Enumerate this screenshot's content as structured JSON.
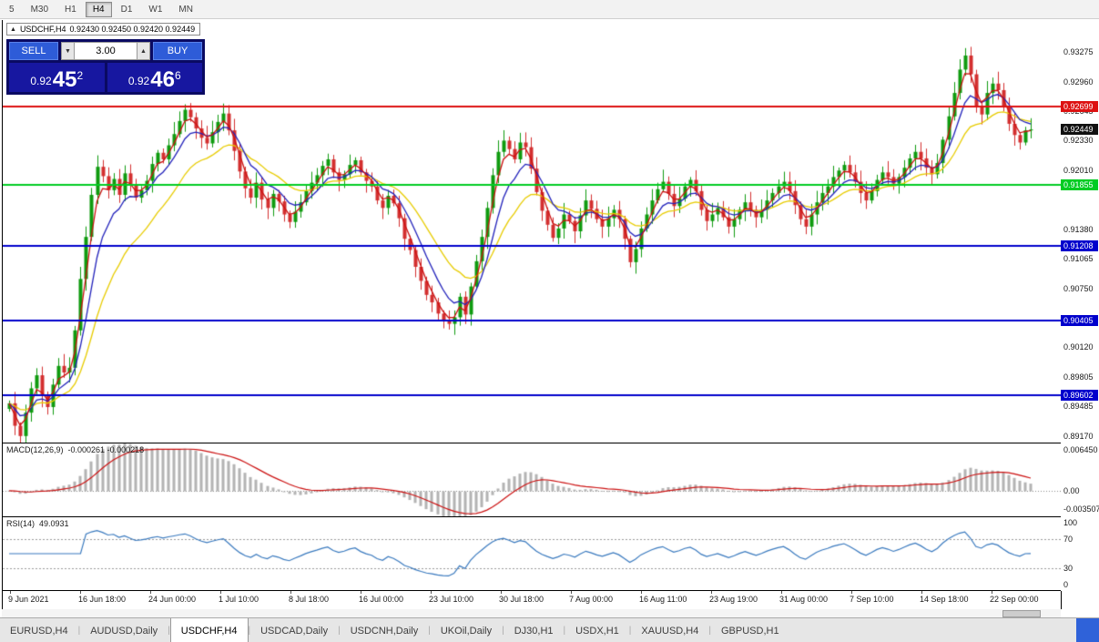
{
  "toolbar": {
    "timeframes": [
      {
        "label": "5",
        "active": false
      },
      {
        "label": "M30",
        "active": false
      },
      {
        "label": "H1",
        "active": false
      },
      {
        "label": "H4",
        "active": true
      },
      {
        "label": "D1",
        "active": false
      },
      {
        "label": "W1",
        "active": false
      },
      {
        "label": "MN",
        "active": false
      }
    ]
  },
  "chart_header": {
    "icon": "▲",
    "symbol": "USDCHF,H4",
    "quotes": "0.92430 0.92450 0.92420 0.92449"
  },
  "trade_panel": {
    "sell_label": "SELL",
    "buy_label": "BUY",
    "volume": "3.00",
    "down_arrow": "▼",
    "up_arrow": "▲",
    "sell_price": {
      "prefix": "0.92",
      "big": "45",
      "sup": "2"
    },
    "buy_price": {
      "prefix": "0.92",
      "big": "46",
      "sup": "6"
    }
  },
  "chart_data": {
    "type": "candlestick",
    "symbol": "USDCHF",
    "timeframe": "H4",
    "title": "USDCHF,H4",
    "ohlc_header": {
      "open": "0.92430",
      "high": "0.92450",
      "low": "0.92420",
      "close": "0.92449"
    },
    "ylim": [
      0.891,
      0.9362
    ],
    "candle_colors": {
      "up": "#0f9b0f",
      "down": "#d32f2f"
    },
    "closes": [
      0.8952,
      0.8928,
      0.8917,
      0.8942,
      0.8968,
      0.8982,
      0.896,
      0.8948,
      0.8972,
      0.8992,
      0.8985,
      0.899,
      0.903,
      0.9085,
      0.913,
      0.9175,
      0.9205,
      0.9195,
      0.918,
      0.9192,
      0.9175,
      0.9198,
      0.9185,
      0.9172,
      0.918,
      0.919,
      0.9208,
      0.922,
      0.9213,
      0.9228,
      0.924,
      0.9254,
      0.9266,
      0.9258,
      0.9246,
      0.9236,
      0.923,
      0.9242,
      0.9253,
      0.9262,
      0.9244,
      0.9222,
      0.92,
      0.9182,
      0.9172,
      0.9188,
      0.917,
      0.9161,
      0.9176,
      0.9168,
      0.9154,
      0.9146,
      0.9157,
      0.9167,
      0.9179,
      0.9188,
      0.9196,
      0.9206,
      0.9213,
      0.9199,
      0.9191,
      0.9197,
      0.9207,
      0.9212,
      0.9199,
      0.919,
      0.9184,
      0.9169,
      0.9161,
      0.9174,
      0.9166,
      0.915,
      0.9128,
      0.9116,
      0.9098,
      0.9083,
      0.9068,
      0.906,
      0.9048,
      0.9041,
      0.9037,
      0.9044,
      0.9066,
      0.9047,
      0.9077,
      0.9104,
      0.913,
      0.9161,
      0.9196,
      0.9221,
      0.9233,
      0.9224,
      0.9213,
      0.9231,
      0.9226,
      0.9203,
      0.9178,
      0.9158,
      0.9143,
      0.9129,
      0.9139,
      0.9154,
      0.9147,
      0.9136,
      0.9153,
      0.9169,
      0.916,
      0.9149,
      0.9141,
      0.915,
      0.9159,
      0.9149,
      0.9128,
      0.9103,
      0.9117,
      0.9139,
      0.9154,
      0.9169,
      0.9181,
      0.9189,
      0.9176,
      0.9163,
      0.9171,
      0.9184,
      0.9191,
      0.9179,
      0.9159,
      0.9147,
      0.9154,
      0.9161,
      0.9151,
      0.9141,
      0.9149,
      0.9159,
      0.9167,
      0.9159,
      0.9151,
      0.9159,
      0.9169,
      0.9177,
      0.9184,
      0.9189,
      0.9179,
      0.9164,
      0.9149,
      0.9141,
      0.9154,
      0.9167,
      0.9177,
      0.9184,
      0.9194,
      0.9201,
      0.9207,
      0.9199,
      0.9189,
      0.9177,
      0.9169,
      0.9179,
      0.9191,
      0.9199,
      0.9194,
      0.9187,
      0.9194,
      0.9204,
      0.9214,
      0.9221,
      0.9214,
      0.9204,
      0.9197,
      0.9209,
      0.9234,
      0.9259,
      0.9284,
      0.9309,
      0.9324,
      0.9304,
      0.9269,
      0.9261,
      0.9284,
      0.9294,
      0.9287,
      0.9269,
      0.9251,
      0.9239,
      0.9231,
      0.9244,
      0.92449
    ],
    "moving_averages": [
      {
        "name": "ma-fast-red",
        "period": 3,
        "color": "#cc1111"
      },
      {
        "name": "ma-medium-blue",
        "period": 7,
        "color": "#2222bb"
      },
      {
        "name": "ma-slow-yellow",
        "period": 16,
        "color": "#e8cc00"
      }
    ],
    "hlines": [
      {
        "value": 0.92699,
        "color": "#dd1111"
      },
      {
        "value": 0.91855,
        "color": "#00cc22"
      },
      {
        "value": 0.91208,
        "color": "#0000cc"
      },
      {
        "value": 0.90405,
        "color": "#0000cc"
      },
      {
        "value": 0.89602,
        "color": "#0000cc"
      }
    ],
    "price_ticks": [
      "0.93275",
      "0.92960",
      "0.92645",
      "0.92330",
      "0.92010",
      "0.91380",
      "0.91065",
      "0.90750",
      "0.90120",
      "0.89805",
      "0.89485",
      "0.89170"
    ],
    "price_tags": [
      {
        "text": "0.92699",
        "bg": "#dd1111"
      },
      {
        "text": "0.92449",
        "bg": "#111111"
      },
      {
        "text": "0.91855",
        "bg": "#00cc22"
      },
      {
        "text": "0.91208",
        "bg": "#0000cc"
      },
      {
        "text": "0.90405",
        "bg": "#0000cc"
      },
      {
        "text": "0.89602",
        "bg": "#0000cc"
      }
    ],
    "x_labels": [
      "9 Jun 2021",
      "16 Jun 18:00",
      "24 Jun 00:00",
      "1 Jul 10:00",
      "8 Jul 18:00",
      "16 Jul 00:00",
      "23 Jul 10:00",
      "30 Jul 18:00",
      "7 Aug 00:00",
      "16 Aug 11:00",
      "23 Aug 19:00",
      "31 Aug 00:00",
      "7 Sep 10:00",
      "14 Sep 18:00",
      "22 Sep 00:00"
    ],
    "macd": {
      "label": "MACD(12,26,9)",
      "values": "-0.000261 -0.000218",
      "fast": 12,
      "slow": 26,
      "signal_period": 9,
      "ymax": 0.00645,
      "ymin": -0.003507,
      "axis_ticks": [
        "0.006450",
        "0.00",
        "-0.003507"
      ],
      "hist_color": "#b4b4b4",
      "hist_edge": "#989898",
      "signal_color": "#cc1111"
    },
    "rsi": {
      "label": "RSI(14)",
      "value": "49.0931",
      "period": 14,
      "levels": [
        100,
        70,
        30,
        0
      ],
      "line_color": "#3a7abf"
    }
  },
  "bottom_tabs": {
    "tabs": [
      {
        "label": "EURUSD,H4",
        "active": false
      },
      {
        "label": "AUDUSD,Daily",
        "active": false
      },
      {
        "label": "USDCHF,H4",
        "active": true
      },
      {
        "label": "USDCAD,Daily",
        "active": false
      },
      {
        "label": "USDCNH,Daily",
        "active": false
      },
      {
        "label": "UKOil,Daily",
        "active": false
      },
      {
        "label": "DJ30,H1",
        "active": false
      },
      {
        "label": "USDX,H1",
        "active": false
      },
      {
        "label": "XAUUSD,H4",
        "active": false
      },
      {
        "label": "GBPUSD,H1",
        "active": false
      }
    ]
  }
}
